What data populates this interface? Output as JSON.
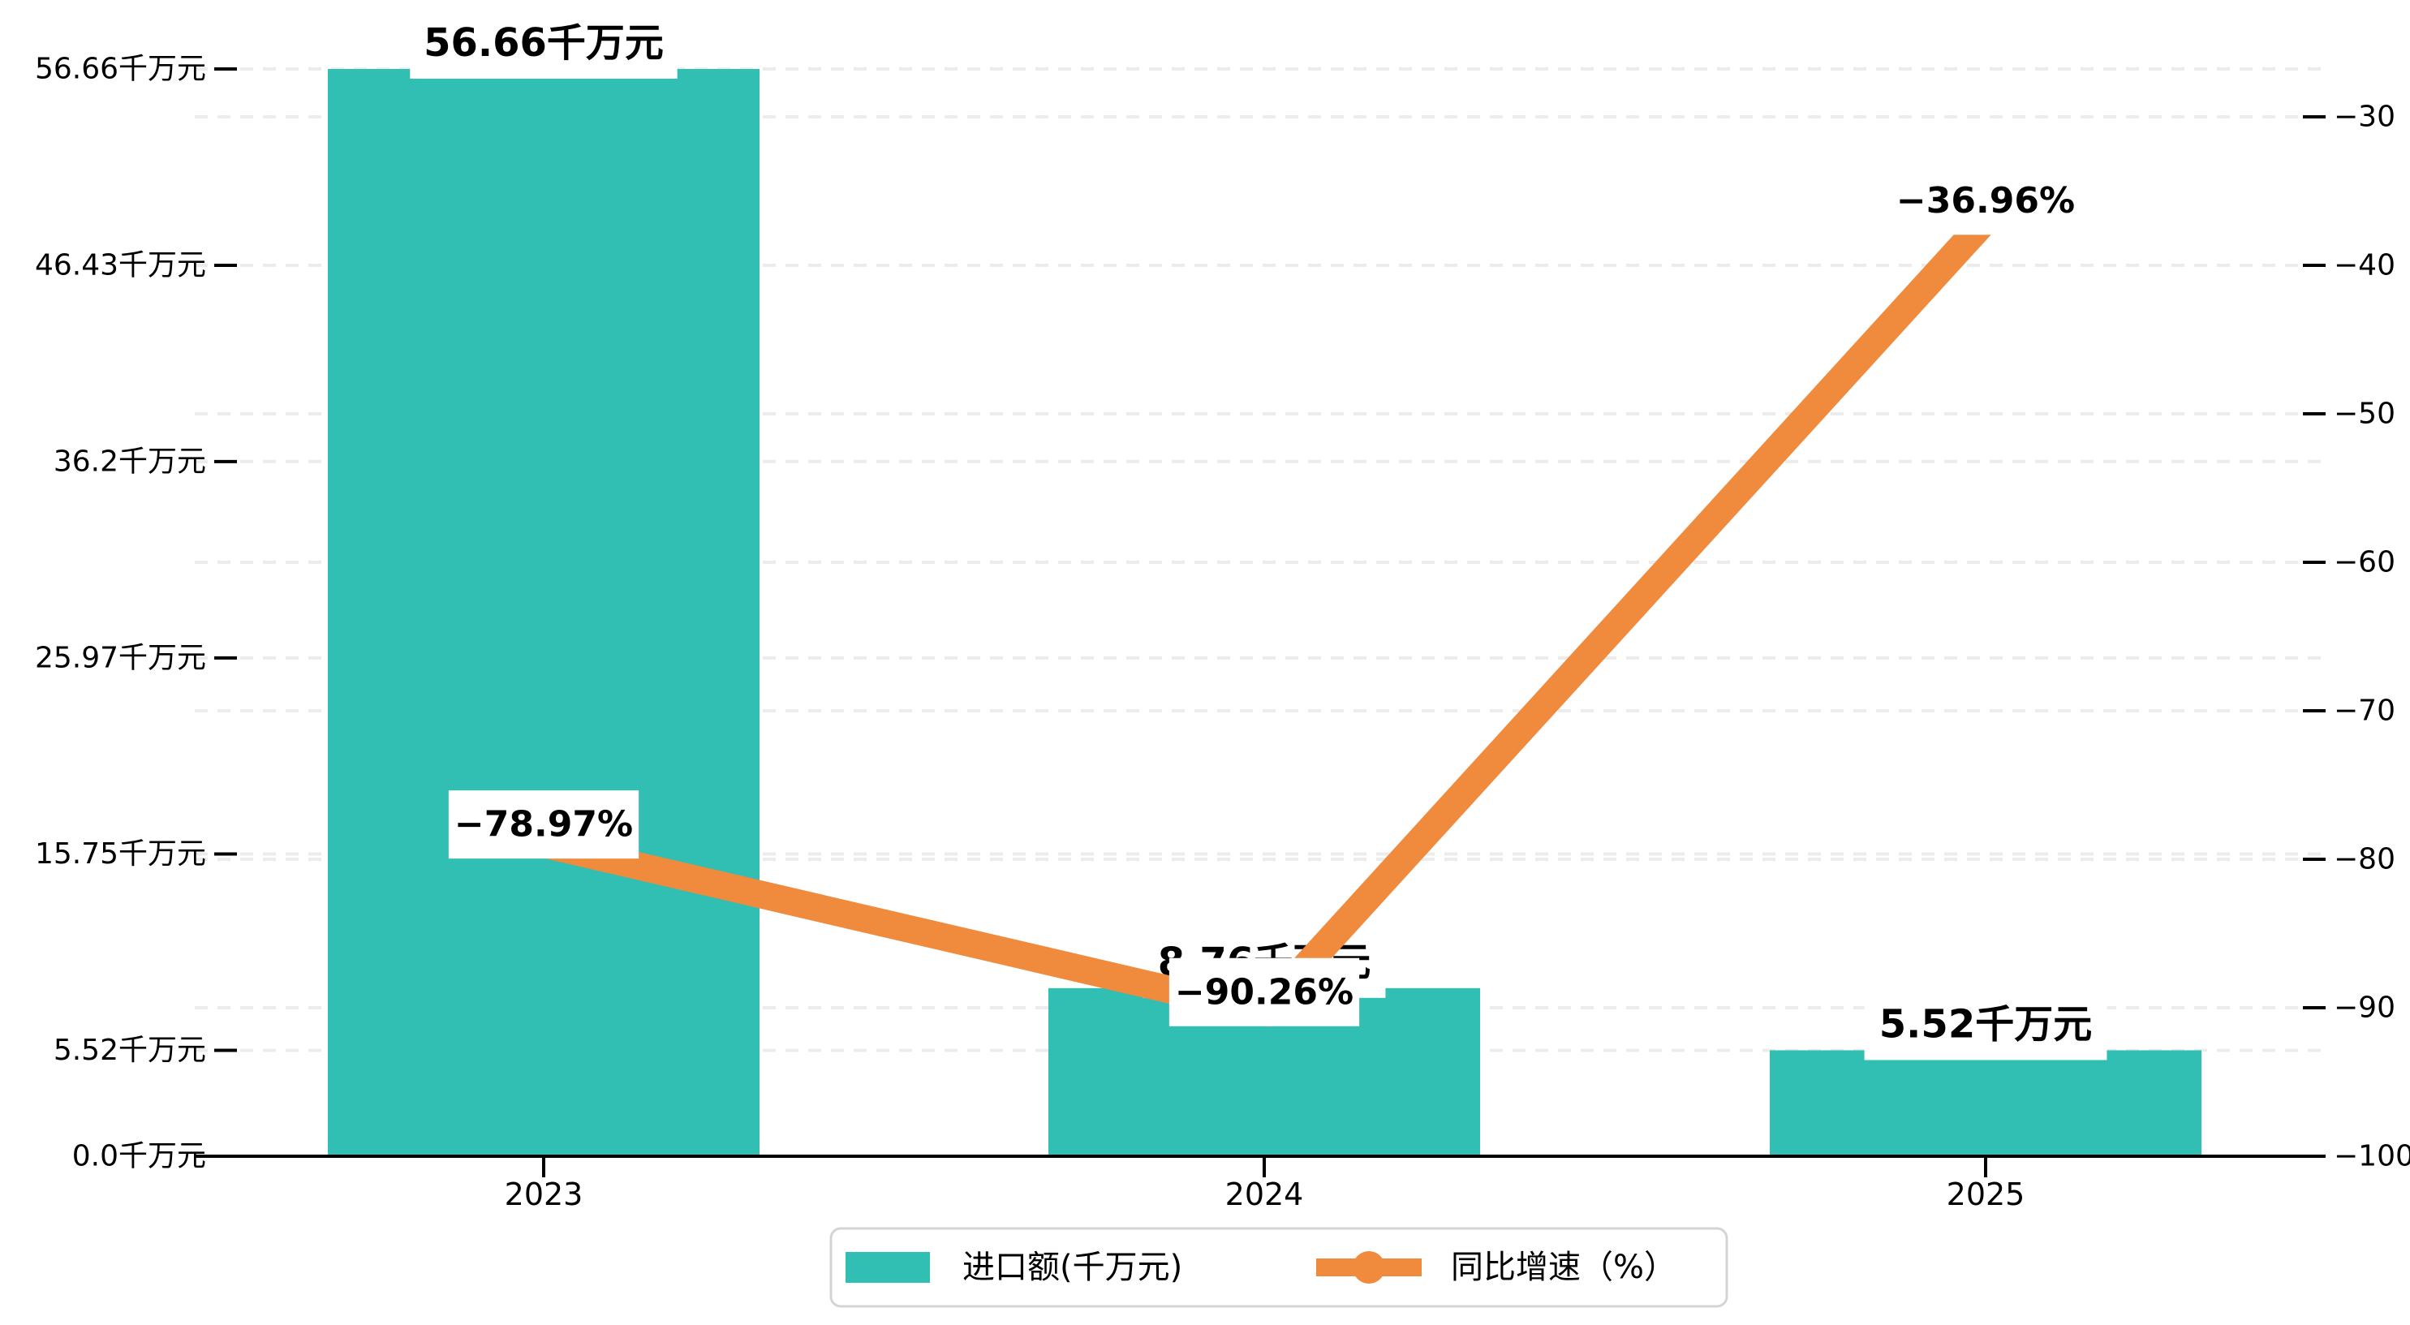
{
  "chart_data": {
    "type": "bar+line",
    "dual_axis": true,
    "background": "#ffffff",
    "gridline_color": "#ececec",
    "axis_color": "#000000",
    "categories": [
      "2023",
      "2024",
      "2025"
    ],
    "series": [
      {
        "name": "进口额(千万元)",
        "type": "bar",
        "axis": "left",
        "unit": "千万元",
        "color": "#31beb3",
        "values": [
          56.66,
          8.76,
          5.52
        ],
        "data_labels": [
          "56.66千万元",
          "8.76千万元",
          "5.52千万元"
        ]
      },
      {
        "name": "同比增速（%）",
        "type": "line",
        "axis": "right",
        "unit": "%",
        "color": "#f08a3d",
        "values": [
          -78.97,
          -90.26,
          -36.96
        ],
        "data_labels": [
          "−78.97%",
          "−90.26%",
          "−36.96%"
        ]
      }
    ],
    "left_axis": {
      "min": 0,
      "max": 56.66,
      "ticks": [
        {
          "value": 0,
          "label": "0.0千万元"
        },
        {
          "value": 5.52,
          "label": "5.52千万元"
        },
        {
          "value": 15.75,
          "label": "15.75千万元"
        },
        {
          "value": 25.97,
          "label": "25.97千万元"
        },
        {
          "value": 36.2,
          "label": "36.2千万元"
        },
        {
          "value": 46.43,
          "label": "46.43千万元"
        },
        {
          "value": 56.66,
          "label": "56.66千万元"
        }
      ]
    },
    "right_axis": {
      "min": -100,
      "max": -30,
      "ticks": [
        {
          "value": -30,
          "label": "−30"
        },
        {
          "value": -40,
          "label": "−40"
        },
        {
          "value": -50,
          "label": "−50"
        },
        {
          "value": -60,
          "label": "−60"
        },
        {
          "value": -70,
          "label": "−70"
        },
        {
          "value": -80,
          "label": "−80"
        },
        {
          "value": -90,
          "label": "−90"
        },
        {
          "value": -100,
          "label": "−100"
        }
      ]
    },
    "legend": {
      "items": [
        {
          "label": "进口额(千万元)",
          "marker": "bar-swatch",
          "color": "#31beb3"
        },
        {
          "label": "同比增速（%）",
          "marker": "line-dot",
          "color": "#f08a3d"
        }
      ]
    }
  }
}
